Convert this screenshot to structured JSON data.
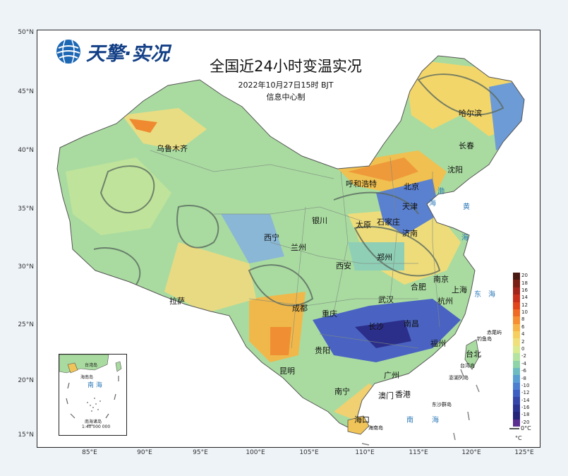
{
  "title": "全国近24小时变温实况",
  "subtitle": "2022年10月27日15时 BJT",
  "maker": "信息中心制",
  "logo_text": "天擎·实况",
  "axes": {
    "lat_ticks": [
      "50°N",
      "45°N",
      "40°N",
      "35°N",
      "30°N",
      "25°N",
      "20°N",
      "15°N"
    ],
    "lon_ticks": [
      "85°E",
      "90°E",
      "95°E",
      "100°E",
      "105°E",
      "110°E",
      "115°E",
      "120°E",
      "125°E"
    ]
  },
  "cities": {
    "wulumuqi": "乌鲁木齐",
    "haerbin": "哈尔滨",
    "changchun": "长春",
    "shenyang": "沈阳",
    "huhehaote": "呼和浩特",
    "beijing": "北京",
    "tianjin": "天津",
    "shijiazhuang": "石家庄",
    "taiyuan": "太原",
    "jinan": "济南",
    "yinchuan": "银川",
    "xining": "西宁",
    "lanzhou": "兰州",
    "xian": "西安",
    "zhengzhou": "郑州",
    "hefei": "合肥",
    "nanjing": "南京",
    "shanghai": "上海",
    "wuhan": "武汉",
    "hangzhou": "杭州",
    "chengdu": "成都",
    "chongqing": "重庆",
    "lasa": "拉萨",
    "changsha": "长沙",
    "nanchang": "南昌",
    "fuzhou": "福州",
    "guiyang": "贵阳",
    "kunming": "昆明",
    "guangzhou": "广州",
    "nanning": "南宁",
    "aomen": "澳门",
    "xianggang": "香港",
    "haikou": "海口",
    "taibei": "台北"
  },
  "seas": {
    "bohai": "渤",
    "bohai2": "海",
    "huang": "黄",
    "huang2": "海",
    "dong": "东",
    "dong2": "海",
    "nan": "南",
    "nan2": "海",
    "nanhai_inset": "南  海"
  },
  "islands": {
    "chiwei": "赤尾屿",
    "diaoyu": "钓鱼岛",
    "taiwan_dao": "台湾岛",
    "penghu": "澎湖列岛",
    "dongsha": "东沙群岛",
    "hainan_dao": "海南岛",
    "inset_taiwan": "台湾岛",
    "inset_hainan": "海南岛",
    "inset_nanhai_islands": "南海诸岛",
    "inset_scale": "1:40 000 000"
  },
  "colorbar": {
    "unit": "°C",
    "zero_line_label": "0°C",
    "levels": [
      "20",
      "18",
      "16",
      "14",
      "12",
      "10",
      "8",
      "6",
      "4",
      "2",
      "0",
      "-2",
      "-4",
      "-6",
      "-8",
      "-10",
      "-12",
      "-14",
      "-16",
      "-18",
      "-20"
    ],
    "colors": [
      "#4a1a12",
      "#7a1f14",
      "#a3241a",
      "#c8301c",
      "#e0451c",
      "#ef6a22",
      "#f58f32",
      "#f7b448",
      "#f5cf60",
      "#f0e07c",
      "#d9ea90",
      "#b4e3a2",
      "#8fd3a8",
      "#6fbcc0",
      "#5a9fd2",
      "#4d7fd0",
      "#3e5fc2",
      "#3446a8",
      "#2a3390",
      "#242478",
      "#5a2f8f"
    ]
  }
}
